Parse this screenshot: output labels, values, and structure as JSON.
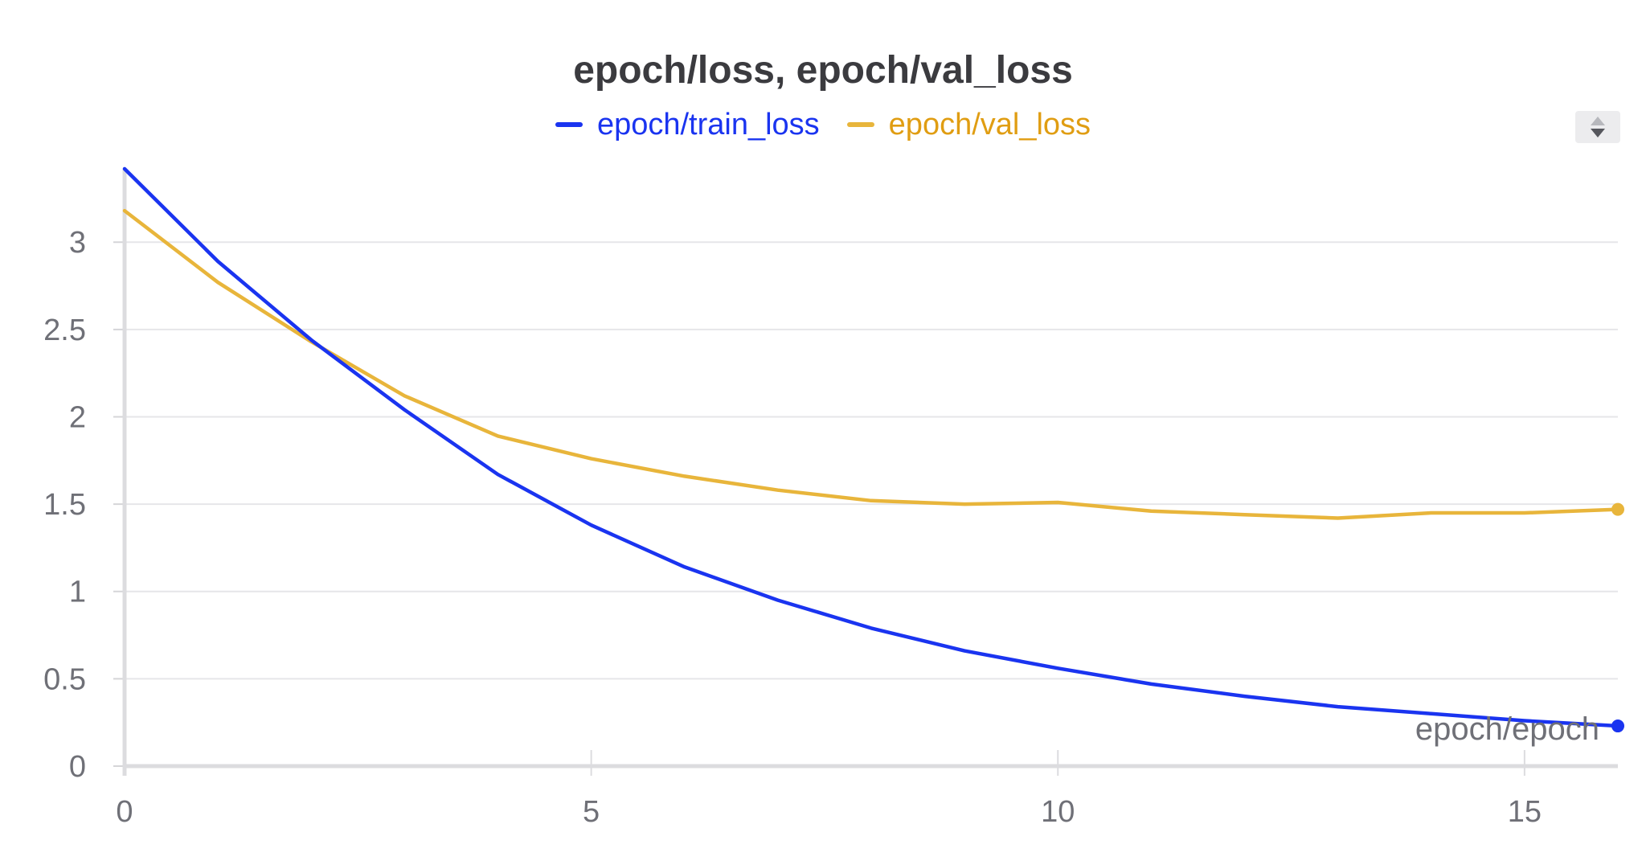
{
  "chart_data": {
    "type": "line",
    "title": "epoch/loss, epoch/val_loss",
    "xlabel": "epoch/epoch",
    "ylabel": "",
    "xlim": [
      0,
      16
    ],
    "ylim": [
      0,
      3.42
    ],
    "grid": true,
    "legend_position": "top-center",
    "x_ticks": [
      "0",
      "5",
      "10",
      "15"
    ],
    "y_ticks": [
      "0",
      "0.5",
      "1",
      "1.5",
      "2",
      "2.5",
      "3"
    ],
    "x": [
      0,
      1,
      2,
      3,
      4,
      5,
      6,
      7,
      8,
      9,
      10,
      11,
      12,
      13,
      14,
      15,
      16
    ],
    "series": [
      {
        "name": "epoch/train_loss",
        "color": "#1a34f0",
        "values": [
          3.42,
          2.89,
          2.44,
          2.04,
          1.67,
          1.38,
          1.14,
          0.95,
          0.79,
          0.66,
          0.56,
          0.47,
          0.4,
          0.34,
          0.3,
          0.26,
          0.23
        ]
      },
      {
        "name": "epoch/val_loss",
        "color": "#e8b53b",
        "values": [
          3.18,
          2.77,
          2.43,
          2.12,
          1.89,
          1.76,
          1.66,
          1.58,
          1.52,
          1.5,
          1.51,
          1.46,
          1.44,
          1.42,
          1.45,
          1.45,
          1.47
        ]
      }
    ]
  },
  "legend_text_colors": {
    "train": "#1a34f0",
    "val": "#e09d12"
  },
  "scroll_control": {
    "up_icon": "triangle-up-icon",
    "down_icon": "triangle-down-icon"
  }
}
